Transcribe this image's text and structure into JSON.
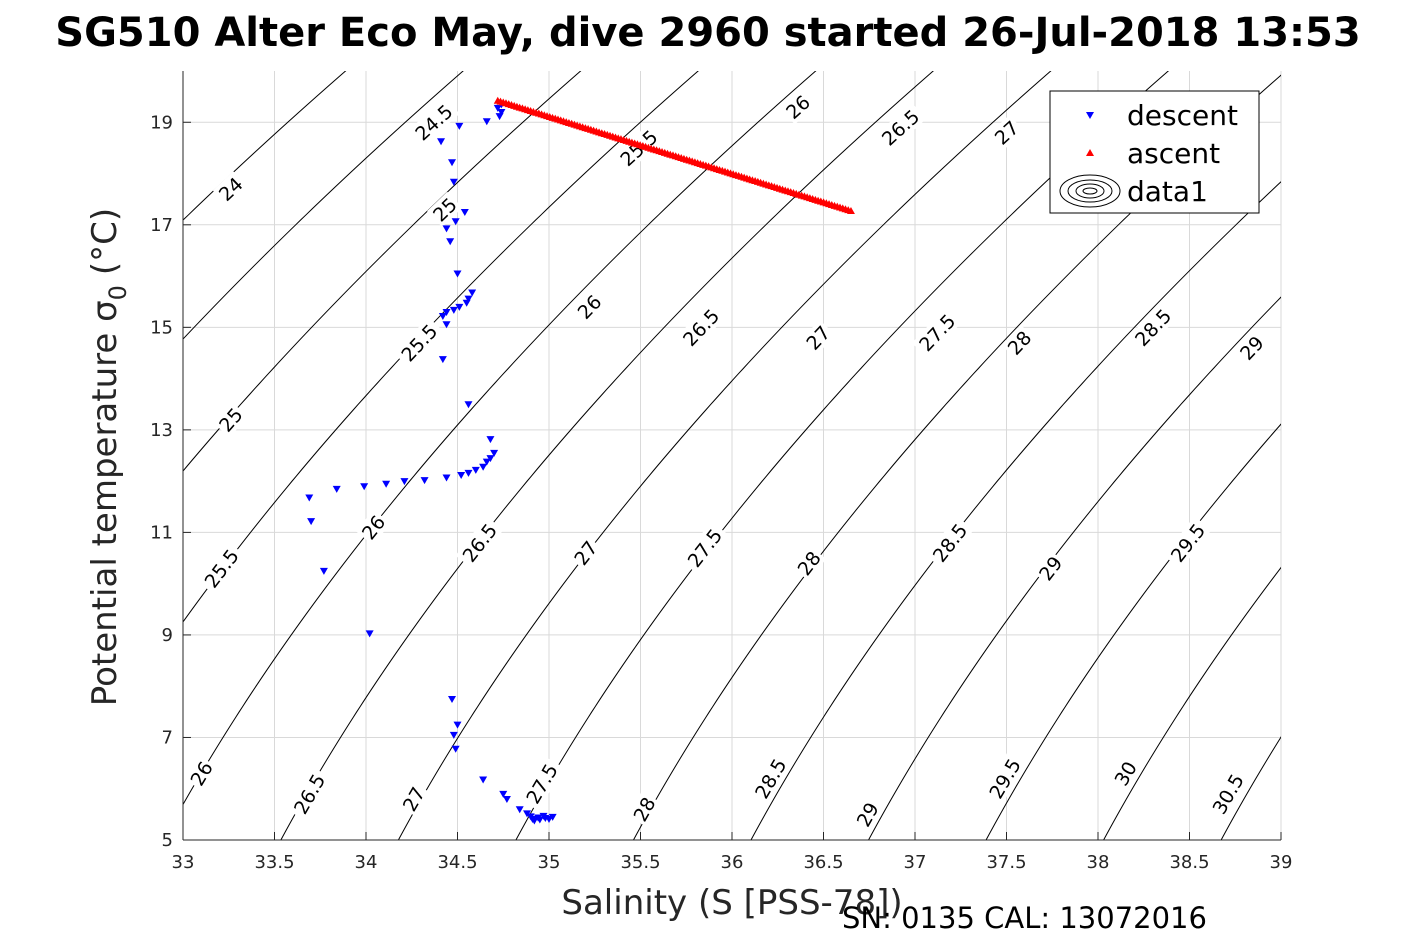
{
  "chart_data": {
    "type": "scatter",
    "title": "SG510 Alter Eco May, dive 2960 started 26-Jul-2018 13:53",
    "xlabel": "Salinity (S [PSS-78])",
    "ylabel": "Potential temperature σ",
    "ylabel_subscript": "0",
    "ylabel_unit": "(°C)",
    "footer": "SN: 0135  CAL: 13072016",
    "xlim": [
      33,
      39
    ],
    "ylim": [
      5,
      20
    ],
    "xticks": [
      33,
      33.5,
      34,
      34.5,
      35,
      35.5,
      36,
      36.5,
      37,
      37.5,
      38,
      38.5,
      39
    ],
    "yticks": [
      5,
      7,
      9,
      11,
      13,
      15,
      17,
      19
    ],
    "grid": true,
    "legend_position": "top-right",
    "legend": [
      "descent",
      "ascent",
      "data1"
    ],
    "colors": {
      "descent": "#0000ff",
      "ascent": "#ff0000",
      "contour": "#000000",
      "grid": "#d9d9d9"
    },
    "contour_levels": [
      24,
      24.5,
      25,
      25.5,
      26,
      26.5,
      27,
      27.5,
      28,
      28.5,
      29,
      29.5,
      30,
      30.5
    ],
    "contour_labels": [
      {
        "text": "24",
        "s": 33.26,
        "t": 17.7
      },
      {
        "text": "24.5",
        "s": 34.37,
        "t": 19.0
      },
      {
        "text": "25",
        "s": 34.43,
        "t": 17.3
      },
      {
        "text": "25.5",
        "s": 35.49,
        "t": 18.5
      },
      {
        "text": "26",
        "s": 36.36,
        "t": 19.3
      },
      {
        "text": "26.5",
        "s": 36.92,
        "t": 18.9
      },
      {
        "text": "27",
        "s": 37.5,
        "t": 18.8
      },
      {
        "text": "25",
        "s": 33.26,
        "t": 13.2
      },
      {
        "text": "25.5",
        "s": 34.29,
        "t": 14.7
      },
      {
        "text": "26",
        "s": 35.22,
        "t": 15.4
      },
      {
        "text": "26.5",
        "s": 35.83,
        "t": 15.0
      },
      {
        "text": "27",
        "s": 36.47,
        "t": 14.8
      },
      {
        "text": "27.5",
        "s": 37.12,
        "t": 14.9
      },
      {
        "text": "28",
        "s": 37.57,
        "t": 14.7
      },
      {
        "text": "28.5",
        "s": 38.3,
        "t": 15.0
      },
      {
        "text": "29",
        "s": 38.84,
        "t": 14.6
      },
      {
        "text": "25.5",
        "s": 33.21,
        "t": 10.3
      },
      {
        "text": "26",
        "s": 34.04,
        "t": 11.1
      },
      {
        "text": "26.5",
        "s": 34.62,
        "t": 10.8
      },
      {
        "text": "27",
        "s": 35.2,
        "t": 10.6
      },
      {
        "text": "27.5",
        "s": 35.85,
        "t": 10.7
      },
      {
        "text": "28",
        "s": 36.42,
        "t": 10.4
      },
      {
        "text": "28.5",
        "s": 37.19,
        "t": 10.8
      },
      {
        "text": "29",
        "s": 37.74,
        "t": 10.3
      },
      {
        "text": "29.5",
        "s": 38.49,
        "t": 10.8
      },
      {
        "text": "26",
        "s": 33.1,
        "t": 6.3
      },
      {
        "text": "26.5",
        "s": 33.69,
        "t": 5.9
      },
      {
        "text": "27",
        "s": 34.26,
        "t": 5.8
      },
      {
        "text": "27.5",
        "s": 34.96,
        "t": 6.1
      },
      {
        "text": "28",
        "s": 35.52,
        "t": 5.6
      },
      {
        "text": "28.5",
        "s": 36.21,
        "t": 6.2
      },
      {
        "text": "29",
        "s": 36.74,
        "t": 5.5
      },
      {
        "text": "29.5",
        "s": 37.49,
        "t": 6.2
      },
      {
        "text": "30",
        "s": 38.15,
        "t": 6.3
      },
      {
        "text": "30.5",
        "s": 38.71,
        "t": 5.9
      }
    ],
    "series": [
      {
        "name": "descent",
        "marker": "triangle-down",
        "points": [
          [
            34.74,
            19.35
          ],
          [
            34.72,
            19.28
          ],
          [
            34.74,
            19.2
          ],
          [
            34.73,
            19.12
          ],
          [
            34.66,
            19.02
          ],
          [
            34.51,
            18.93
          ],
          [
            34.41,
            18.63
          ],
          [
            34.47,
            18.22
          ],
          [
            34.48,
            17.84
          ],
          [
            34.54,
            17.25
          ],
          [
            34.49,
            17.07
          ],
          [
            34.44,
            16.93
          ],
          [
            34.46,
            16.68
          ],
          [
            34.5,
            16.05
          ],
          [
            34.58,
            15.68
          ],
          [
            34.56,
            15.56
          ],
          [
            34.55,
            15.48
          ],
          [
            34.51,
            15.4
          ],
          [
            34.48,
            15.34
          ],
          [
            34.44,
            15.3
          ],
          [
            34.42,
            15.22
          ],
          [
            34.44,
            15.06
          ],
          [
            34.42,
            14.38
          ],
          [
            34.56,
            13.5
          ],
          [
            34.68,
            12.82
          ],
          [
            34.7,
            12.55
          ],
          [
            34.68,
            12.45
          ],
          [
            34.66,
            12.38
          ],
          [
            34.64,
            12.28
          ],
          [
            34.6,
            12.22
          ],
          [
            34.56,
            12.16
          ],
          [
            34.52,
            12.12
          ],
          [
            34.44,
            12.07
          ],
          [
            34.32,
            12.02
          ],
          [
            34.21,
            12.0
          ],
          [
            34.11,
            11.95
          ],
          [
            33.99,
            11.9
          ],
          [
            33.84,
            11.85
          ],
          [
            33.69,
            11.68
          ],
          [
            33.7,
            11.22
          ],
          [
            33.77,
            10.25
          ],
          [
            34.02,
            9.03
          ],
          [
            34.47,
            7.75
          ],
          [
            34.5,
            7.25
          ],
          [
            34.48,
            7.05
          ],
          [
            34.49,
            6.78
          ],
          [
            34.64,
            6.18
          ],
          [
            34.75,
            5.9
          ],
          [
            34.77,
            5.8
          ],
          [
            34.84,
            5.6
          ],
          [
            34.88,
            5.52
          ],
          [
            34.9,
            5.46
          ],
          [
            34.91,
            5.41
          ],
          [
            34.92,
            5.38
          ],
          [
            34.95,
            5.4
          ],
          [
            34.98,
            5.43
          ],
          [
            35.02,
            5.45
          ],
          [
            34.94,
            5.44
          ],
          [
            34.97,
            5.47
          ],
          [
            35.0,
            5.41
          ]
        ]
      },
      {
        "name": "ascent",
        "marker": "triangle-up",
        "range": {
          "s_start": 34.72,
          "t_start": 19.42,
          "s_end": 36.65,
          "t_end": 17.27,
          "count": 130
        }
      }
    ]
  }
}
